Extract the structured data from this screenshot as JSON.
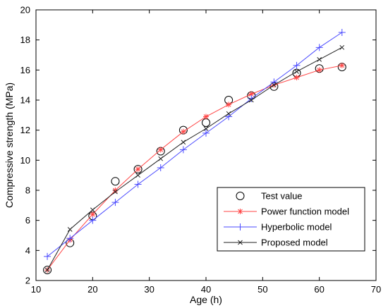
{
  "chart_data": {
    "type": "line",
    "title": "",
    "xlabel": "Age (h)",
    "ylabel": "Compressive strength (MPa)",
    "xlim": [
      10,
      70
    ],
    "ylim": [
      2,
      20
    ],
    "xticks": [
      10,
      20,
      30,
      40,
      50,
      60,
      70
    ],
    "yticks": [
      2,
      4,
      6,
      8,
      10,
      12,
      14,
      16,
      18,
      20
    ],
    "grid": false,
    "legend_position": "bottom-right",
    "x": [
      12,
      16,
      20,
      24,
      28,
      32,
      36,
      40,
      44,
      48,
      52,
      56,
      60,
      64
    ],
    "series": [
      {
        "name": "Test value",
        "style": "markers",
        "marker": "circle",
        "color": "#000000",
        "values": [
          2.7,
          4.5,
          6.3,
          8.6,
          9.4,
          10.6,
          12.0,
          12.5,
          14.0,
          14.3,
          14.9,
          15.8,
          16.1,
          16.2
        ]
      },
      {
        "name": "Power function model",
        "style": "line-markers",
        "marker": "asterisk",
        "color": "#ff4444",
        "values": [
          2.7,
          4.7,
          6.4,
          8.0,
          9.4,
          10.7,
          11.9,
          12.9,
          13.7,
          14.4,
          15.0,
          15.5,
          16.0,
          16.3
        ]
      },
      {
        "name": "Hyperbolic model",
        "style": "line-markers",
        "marker": "plus",
        "color": "#4a4aff",
        "values": [
          3.6,
          4.8,
          6.0,
          7.2,
          8.4,
          9.5,
          10.7,
          11.8,
          12.9,
          14.1,
          15.2,
          16.3,
          17.5,
          18.5
        ]
      },
      {
        "name": "Proposed model",
        "style": "line-markers",
        "marker": "x",
        "color": "#222222",
        "values": [
          2.7,
          5.4,
          6.7,
          7.9,
          9.0,
          10.1,
          11.2,
          12.1,
          13.1,
          14.0,
          15.0,
          15.9,
          16.7,
          17.5
        ]
      }
    ]
  }
}
